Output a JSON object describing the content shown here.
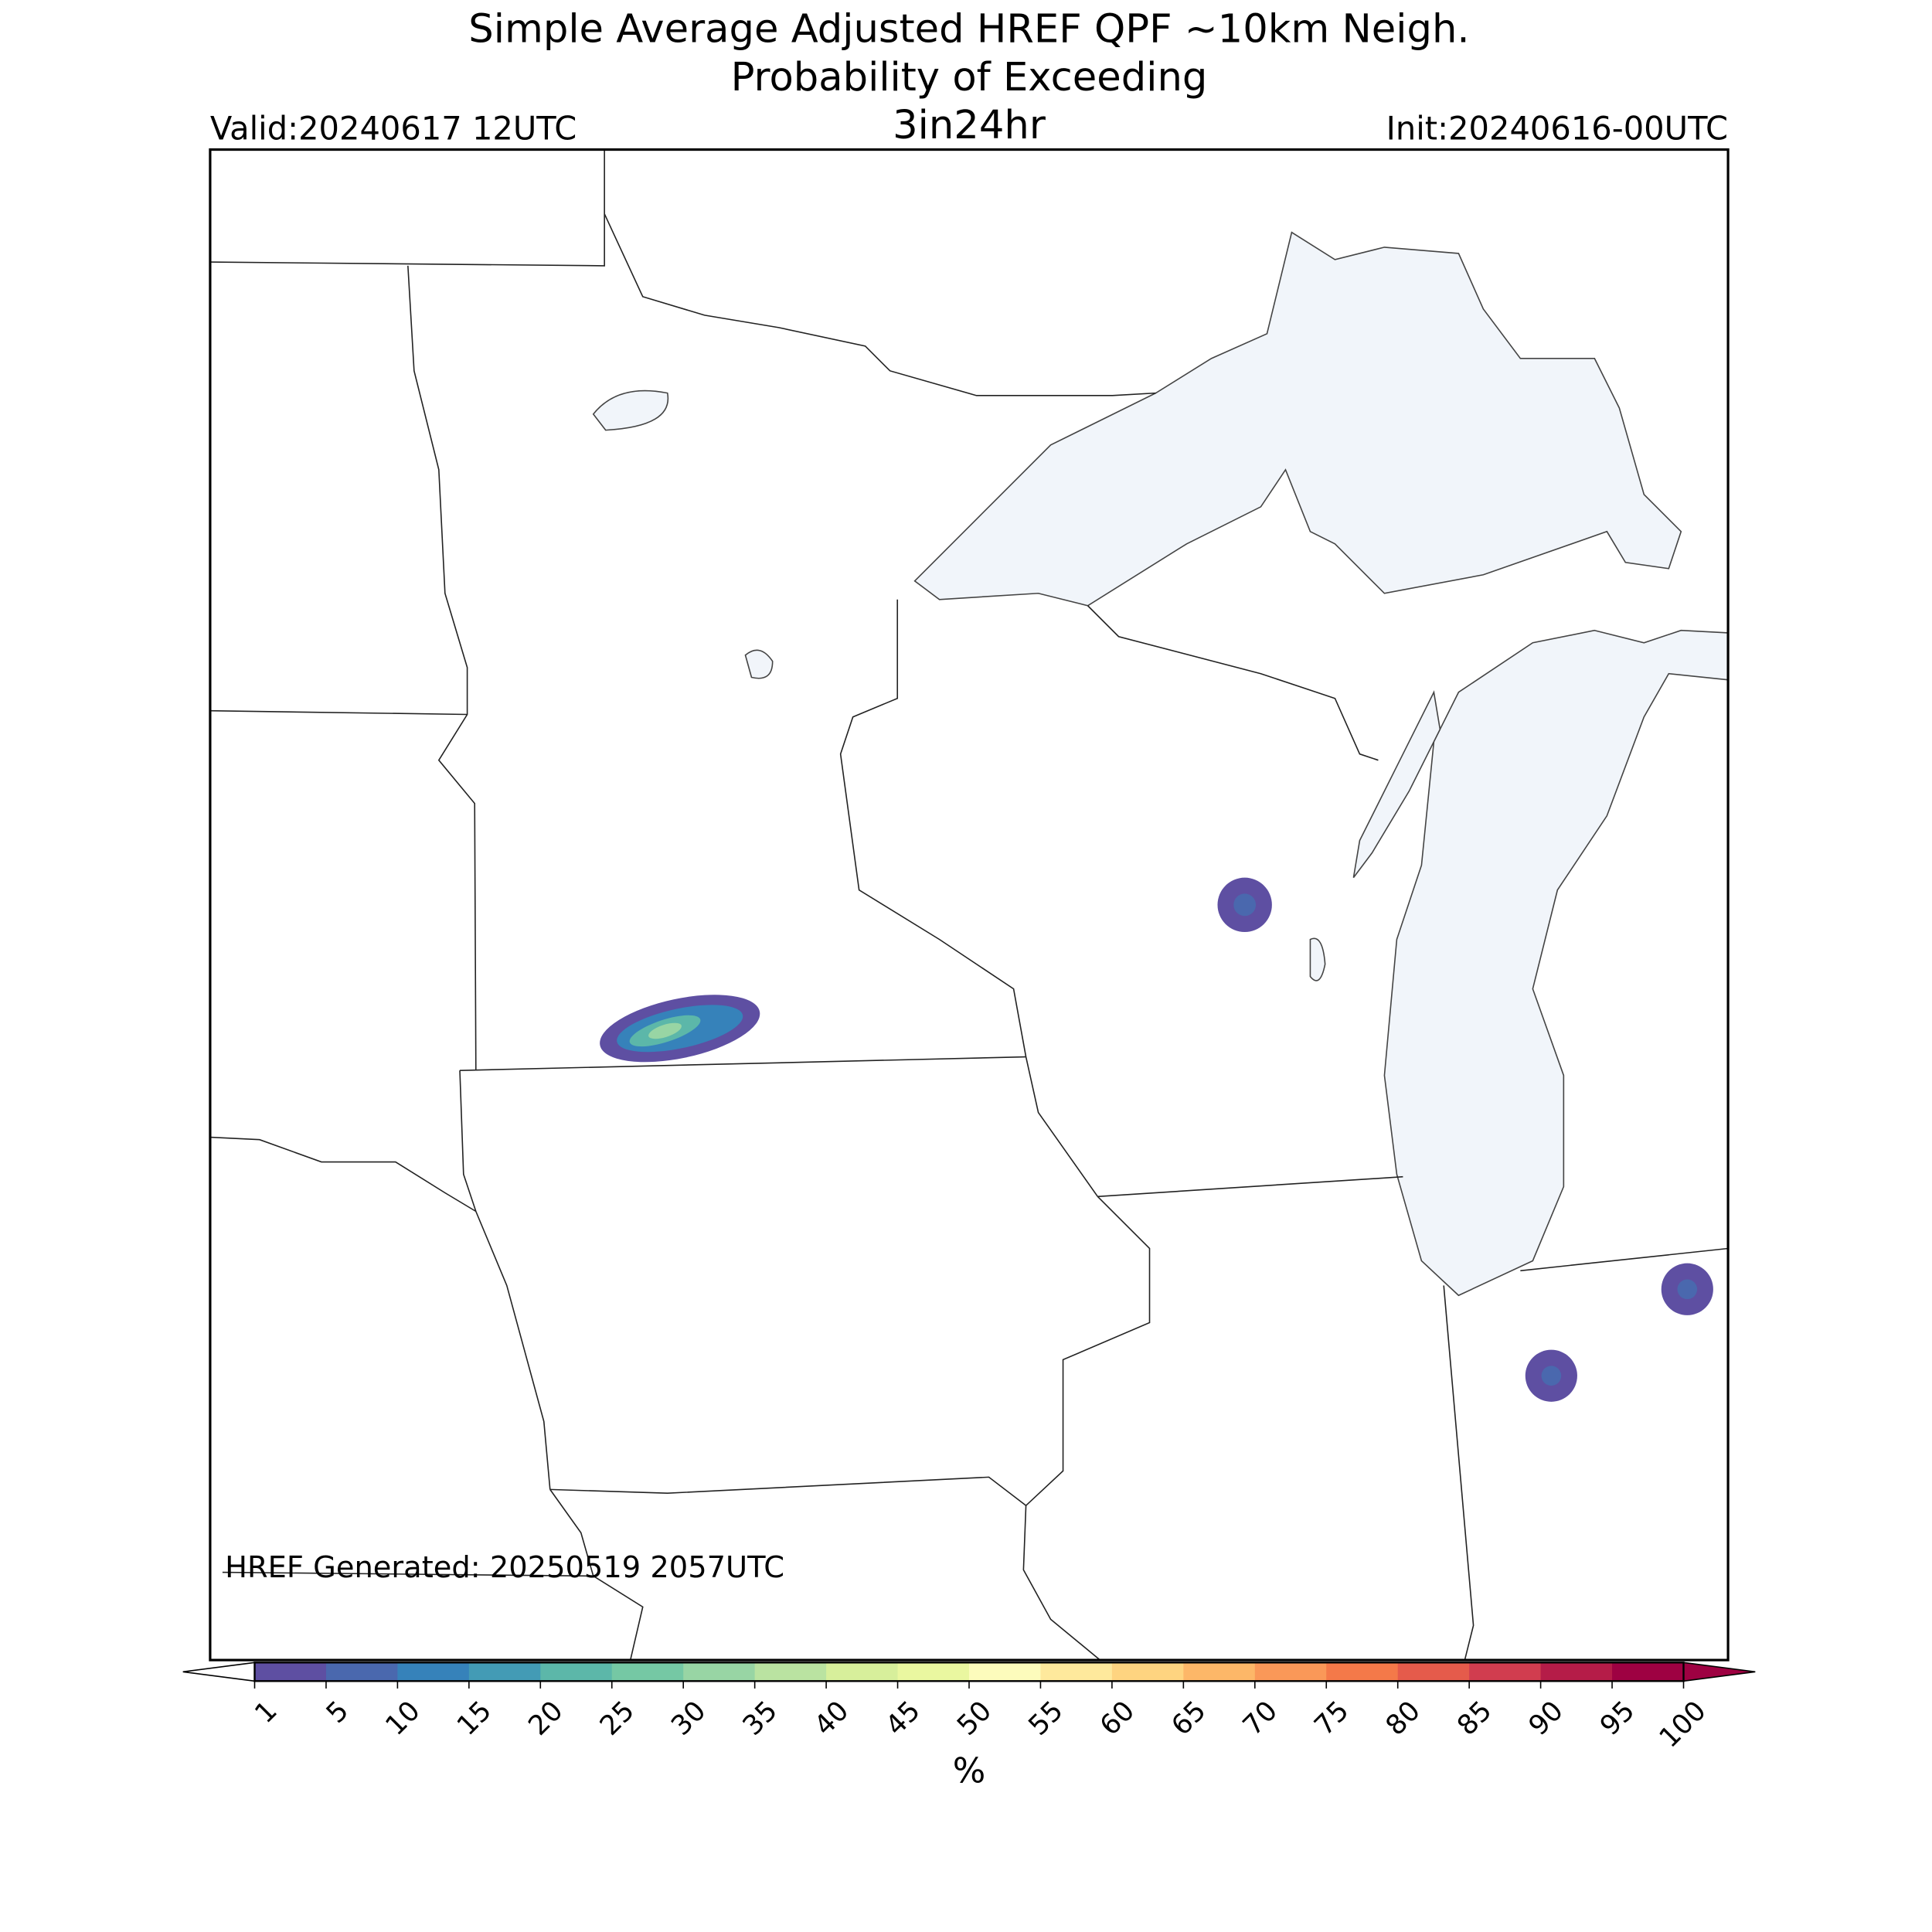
{
  "header": {
    "title": "Simple Average Adjusted HREF QPF ~10km Neigh.",
    "subtitle": "Probability of Exceeding",
    "threshold": "3in24hr",
    "valid": "Valid:20240617 12UTC",
    "init": "Init:20240616-00UTC"
  },
  "footer_note": "HREF Generated: 20250519 2057UTC",
  "colorbar": {
    "ticks": [
      1,
      5,
      10,
      15,
      20,
      25,
      30,
      35,
      40,
      45,
      50,
      55,
      60,
      65,
      70,
      75,
      80,
      85,
      90,
      95,
      100
    ],
    "colors": [
      "#5e4fa2",
      "#4a68ae",
      "#3682ba",
      "#439bb5",
      "#5cb7a9",
      "#75c8a4",
      "#98d5a4",
      "#bae3a1",
      "#d7ef9b",
      "#eaf7a0",
      "#fdfcbc",
      "#fee99c",
      "#fed480",
      "#fdb768",
      "#fa9858",
      "#f47949",
      "#e55b4b",
      "#d13d4f",
      "#b51c48",
      "#9e0142"
    ],
    "extend_min_color": "#ffffff",
    "extend_max_color": "#9e0142",
    "label": "%"
  }
}
